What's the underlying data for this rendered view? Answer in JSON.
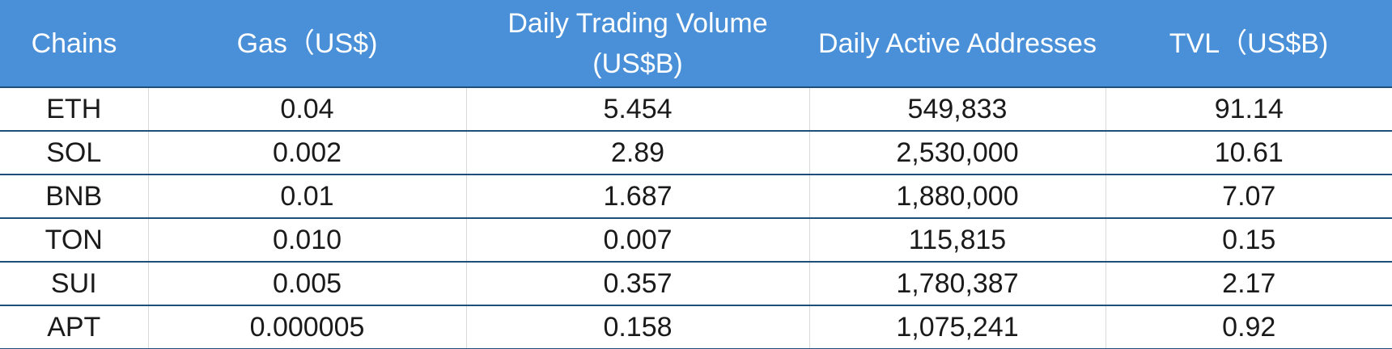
{
  "chart_data": {
    "type": "table",
    "columns": [
      "Chains",
      "Gas（US$)",
      "Daily Trading Volume (US$B)",
      "Daily Active Addresses",
      "TVL（US$B)"
    ],
    "rows": [
      [
        "ETH",
        "0.04",
        "5.454",
        "549,833",
        "91.14"
      ],
      [
        "SOL",
        "0.002",
        "2.89",
        "2,530,000",
        "10.61"
      ],
      [
        "BNB",
        "0.01",
        "1.687",
        "1,880,000",
        "7.07"
      ],
      [
        "TON",
        "0.010",
        "0.007",
        "115,815",
        "0.15"
      ],
      [
        "SUI",
        "0.005",
        "0.357",
        "1,780,387",
        "2.17"
      ],
      [
        "APT",
        "0.000005",
        "0.158",
        "1,075,241",
        "0.92"
      ]
    ]
  },
  "colors": {
    "header_bg": "#4a90d9",
    "header_text": "#ffffff",
    "row_divider": "#1f4e79",
    "cell_text": "#1a1a1a"
  }
}
